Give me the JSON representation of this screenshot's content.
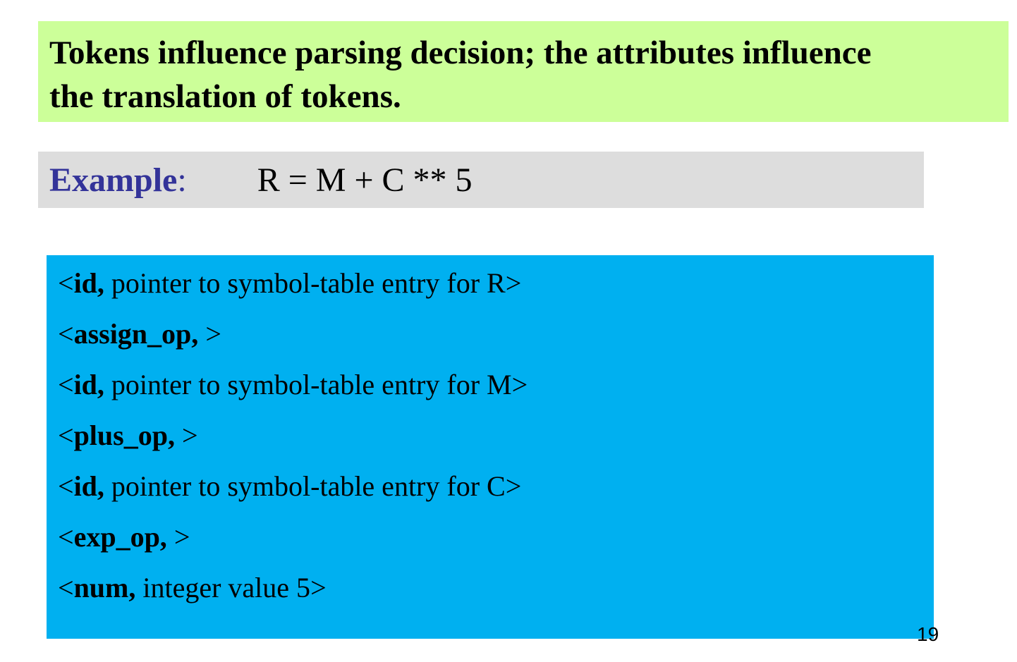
{
  "title": {
    "line1": "Tokens influence parsing decision; the attributes influence",
    "line2": "the translation of tokens."
  },
  "example": {
    "label": "Example",
    "colon": ":",
    "expression": "R = M + C ** 5"
  },
  "tokens": [
    {
      "open": "<",
      "name": "id,",
      "attribute": " pointer to symbol-table entry for R",
      "close": ">"
    },
    {
      "open": "<",
      "name": "assign_op, ",
      "attribute": "",
      "close": ">"
    },
    {
      "open": "<",
      "name": "id,",
      "attribute": " pointer to symbol-table entry for M",
      "close": ">"
    },
    {
      "open": "<",
      "name": "plus_op, ",
      "attribute": "",
      "close": ">"
    },
    {
      "open": "<",
      "name": "id,",
      "attribute": " pointer to symbol-table entry for C",
      "close": ">"
    },
    {
      "open": "<",
      "name": "exp_op, ",
      "attribute": "",
      "close": ">"
    },
    {
      "open": "<",
      "name": "num,",
      "attribute": " integer value 5",
      "close": ">"
    }
  ],
  "page_number": "19",
  "colors": {
    "title_background": "#ccff99",
    "example_background": "#dddddd",
    "example_label": "#333399",
    "tokens_background": "#00b0f0"
  }
}
